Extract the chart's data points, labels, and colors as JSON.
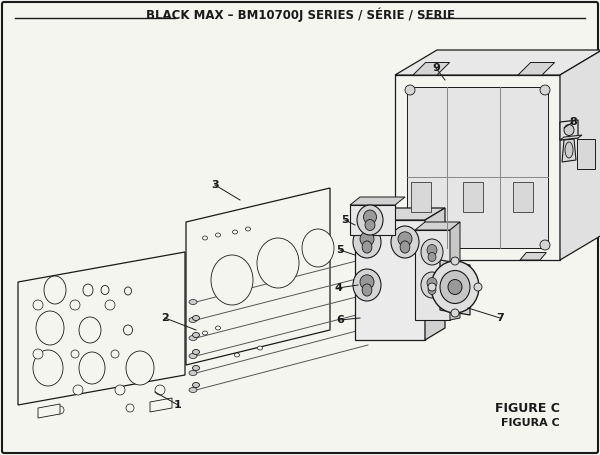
{
  "title": "BLACK MAX – BM10700J SERIES / SÉRIE / SERIE",
  "figure_label": "FIGURE C",
  "figure_label2": "FIGURA C",
  "bg_color": "#f5f5f0",
  "line_color": "#1a1a1a",
  "title_fontsize": 8.5,
  "label_fontsize": 8,
  "figure_fontsize": 9
}
